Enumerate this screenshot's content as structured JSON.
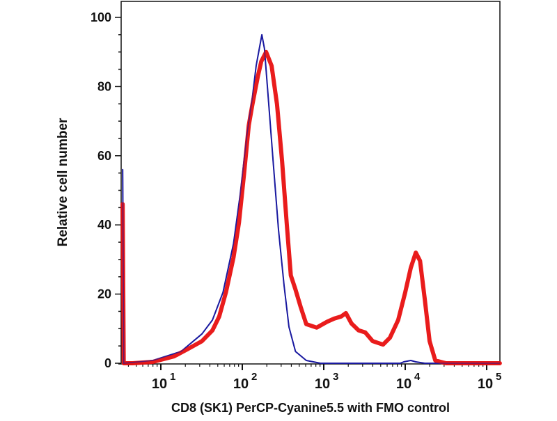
{
  "chart_data": {
    "type": "line",
    "title": "",
    "xlabel": "CD8 (SK1) PerCP-Cyanine5.5 with FMO control",
    "ylabel": "Relative cell number",
    "xscale": "log",
    "xlim": [
      3.2,
      145000
    ],
    "ylim": [
      0,
      100
    ],
    "yticks": [
      0,
      20,
      40,
      60,
      80,
      100
    ],
    "ytick_labels": [
      "0",
      "20",
      "40",
      "60",
      "80",
      "100"
    ],
    "xticks": [
      10,
      100,
      1000,
      10000,
      100000
    ],
    "xtick_labels": [
      {
        "base": "10",
        "exp": "1"
      },
      {
        "base": "10",
        "exp": "2"
      },
      {
        "base": "10",
        "exp": "3"
      },
      {
        "base": "10",
        "exp": "4"
      },
      {
        "base": "10",
        "exp": "5"
      }
    ],
    "grid": false,
    "series": [
      {
        "name": "FMO control",
        "color": "#1a1aa0",
        "x": [
          3.4,
          3.5,
          8,
          17.7,
          32,
          43,
          58,
          78,
          94,
          115,
          133,
          148,
          174,
          187,
          208,
          238,
          278,
          326,
          374,
          450,
          610,
          910,
          8700,
          9600,
          11700,
          13500,
          17400,
          145000
        ],
        "y": [
          56,
          0,
          0.8,
          3.4,
          8.5,
          12.5,
          20.5,
          34.6,
          48.7,
          66.8,
          76.9,
          86,
          95,
          91,
          77,
          58.9,
          38.6,
          22.5,
          10.5,
          3.4,
          0.8,
          0,
          0,
          0.4,
          0.8,
          0.4,
          0,
          0
        ]
      },
      {
        "name": "CD8 (SK1) PerCP-Cyanine5.5",
        "color": "#e81010",
        "x": [
          3.4,
          3.5,
          4.5,
          8,
          14.5,
          21,
          32,
          43,
          52,
          63,
          78,
          91,
          105,
          120,
          133,
          155,
          171,
          196,
          229,
          267,
          308,
          352,
          394,
          450,
          520,
          610,
          820,
          1100,
          1340,
          1630,
          1870,
          2190,
          2680,
          3240,
          3980,
          5340,
          6500,
          8200,
          10000,
          11700,
          13500,
          15200,
          17400,
          19900,
          23400,
          31700,
          145000
        ],
        "y": [
          46,
          0,
          0,
          0.4,
          2,
          4,
          6.4,
          9.5,
          13.5,
          20.5,
          30.6,
          40.6,
          54.7,
          68.8,
          74.8,
          82.9,
          87.3,
          90,
          86,
          74.8,
          58.3,
          40.2,
          25.4,
          21.3,
          16.3,
          11.3,
          10.3,
          12,
          12.9,
          13.5,
          14.5,
          11.5,
          9.5,
          8.9,
          6.4,
          5.4,
          7.4,
          12.5,
          20.5,
          27.6,
          32,
          29.6,
          18.5,
          6.4,
          0.8,
          0,
          0
        ]
      }
    ]
  }
}
